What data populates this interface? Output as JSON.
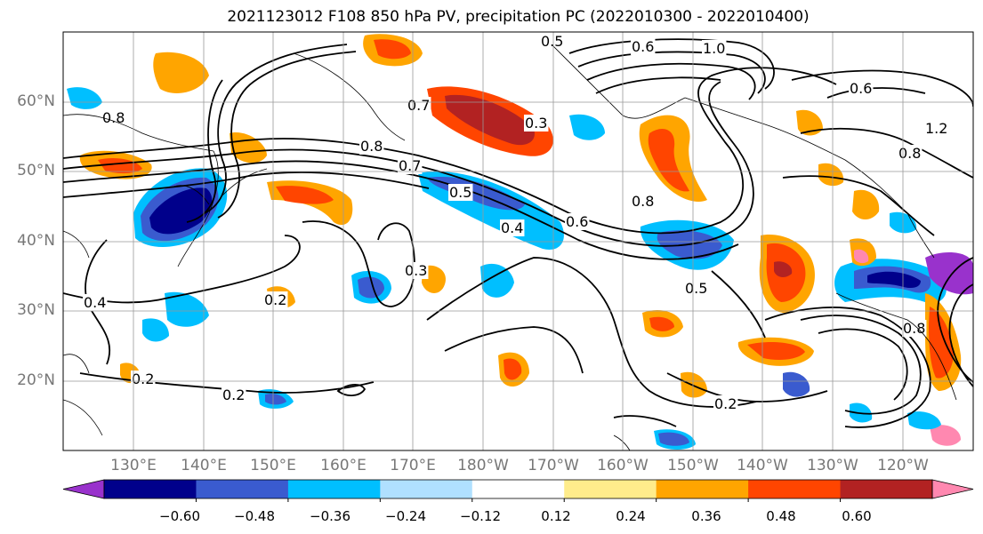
{
  "title": "2021123012 F108 850 hPa PV, precipitation PC (2022010300 - 2022010400)",
  "map": {
    "projection": "PlateCarree",
    "lon_range": [
      120,
      250
    ],
    "lat_range": [
      10,
      70
    ],
    "gridlines": true,
    "lat_labels": [
      "60°N",
      "50°N",
      "40°N",
      "30°N",
      "20°N"
    ],
    "lon_labels": [
      "130°E",
      "140°E",
      "150°E",
      "160°E",
      "170°E",
      "180°W",
      "170°W",
      "160°W",
      "150°W",
      "140°W",
      "130°W",
      "120°W"
    ],
    "contour_labels": [
      "0.6",
      "1.0",
      "0.5",
      "0.7",
      "0.3",
      "0.8",
      "0.7",
      "0.5",
      "0.4",
      "0.6",
      "0.8",
      "0.5",
      "0.8",
      "0.3",
      "0.2",
      "0.2",
      "0.2",
      "0.4",
      "0.2",
      "0.8",
      "0.8",
      "1.2",
      "0.6"
    ]
  },
  "colorbar": {
    "colors": [
      "#9932cc",
      "#00008b",
      "#3a5bcf",
      "#00bfff",
      "#b0e0ff",
      "#ffffff",
      "#ffec8b",
      "#ffa500",
      "#ff4500",
      "#b22222",
      "#ff88b0"
    ],
    "tick_labels": [
      "−0.60",
      "−0.48",
      "−0.36",
      "−0.24",
      "−0.12",
      "0.12",
      "0.24",
      "0.36",
      "0.48",
      "0.60"
    ],
    "extend": "both"
  }
}
